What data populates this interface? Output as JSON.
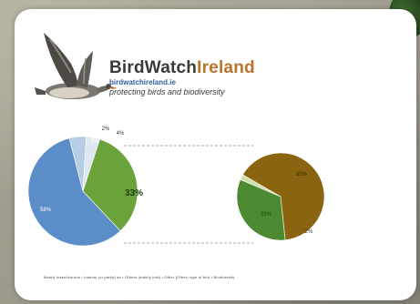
{
  "brand": {
    "name_part1": "BirdWatch",
    "name_part2": "Ireland",
    "url": "birdwatchireland.ie",
    "tagline": "protecting birds and biodiversity"
  },
  "colors": {
    "blue": "#5b8ec8",
    "green": "#6aa33a",
    "light_blue": "#b7cde6",
    "pale": "#dfe8f1",
    "brown": "#8b6410",
    "dark_green": "#4c8a31",
    "pale_green": "#cfe0a8",
    "connector": "#555555"
  },
  "footnote": "Mainly insectivorous  •  Insects (or partly) as  •  Others (mainly bird)  •  Other (Other) type of bird  •  Biodiversity",
  "chart_data": {
    "type": "pie",
    "charts": [
      {
        "name": "",
        "slices": [
          {
            "label": "58%",
            "value": 58,
            "color": "#5b8ec8"
          },
          {
            "label": "33%",
            "value": 33,
            "color": "#6aa33a"
          },
          {
            "label": "4%",
            "value": 4,
            "color": "#dfe8f1"
          },
          {
            "label": "5%",
            "value": 5,
            "color": "#b7cde6"
          }
        ],
        "extra_labels": [
          "2%"
        ]
      },
      {
        "name": "",
        "slices": [
          {
            "label": "65%",
            "value": 65,
            "color": "#8b6410"
          },
          {
            "label": "33%",
            "value": 33,
            "color": "#4c8a31"
          },
          {
            "label": "2%",
            "value": 2,
            "color": "#cfe0a8"
          }
        ]
      }
    ]
  }
}
